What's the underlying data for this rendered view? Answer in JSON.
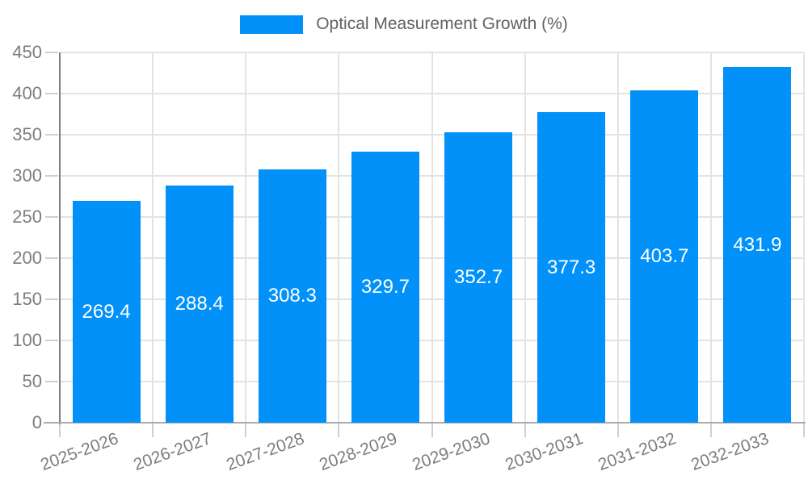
{
  "legend": {
    "label": "Optical Measurement Growth (%)",
    "swatch_color": "#0191f8"
  },
  "chart_data": {
    "type": "bar",
    "title": "",
    "xlabel": "",
    "ylabel": "",
    "categories": [
      "2025-2026",
      "2026-2027",
      "2027-2028",
      "2028-2029",
      "2029-2030",
      "2030-2031",
      "2031-2032",
      "2032-2033"
    ],
    "series": [
      {
        "name": "Optical Measurement Growth (%)",
        "values": [
          269.4,
          288.4,
          308.3,
          329.7,
          352.7,
          377.3,
          403.7,
          431.9
        ]
      }
    ],
    "value_labels": [
      "269.4",
      "288.4",
      "308.3",
      "329.7",
      "352.7",
      "377.3",
      "403.7",
      "431.9"
    ],
    "ytick_labels": [
      "0",
      "50",
      "100",
      "150",
      "200",
      "250",
      "300",
      "350",
      "400",
      "450"
    ],
    "ylim": [
      0,
      450
    ],
    "ytick_step": 50,
    "grid": true,
    "legend_position": "top",
    "bar_color": "#0191f8",
    "value_label_color": "#ffffff",
    "xtick_rotation_deg": -20
  }
}
